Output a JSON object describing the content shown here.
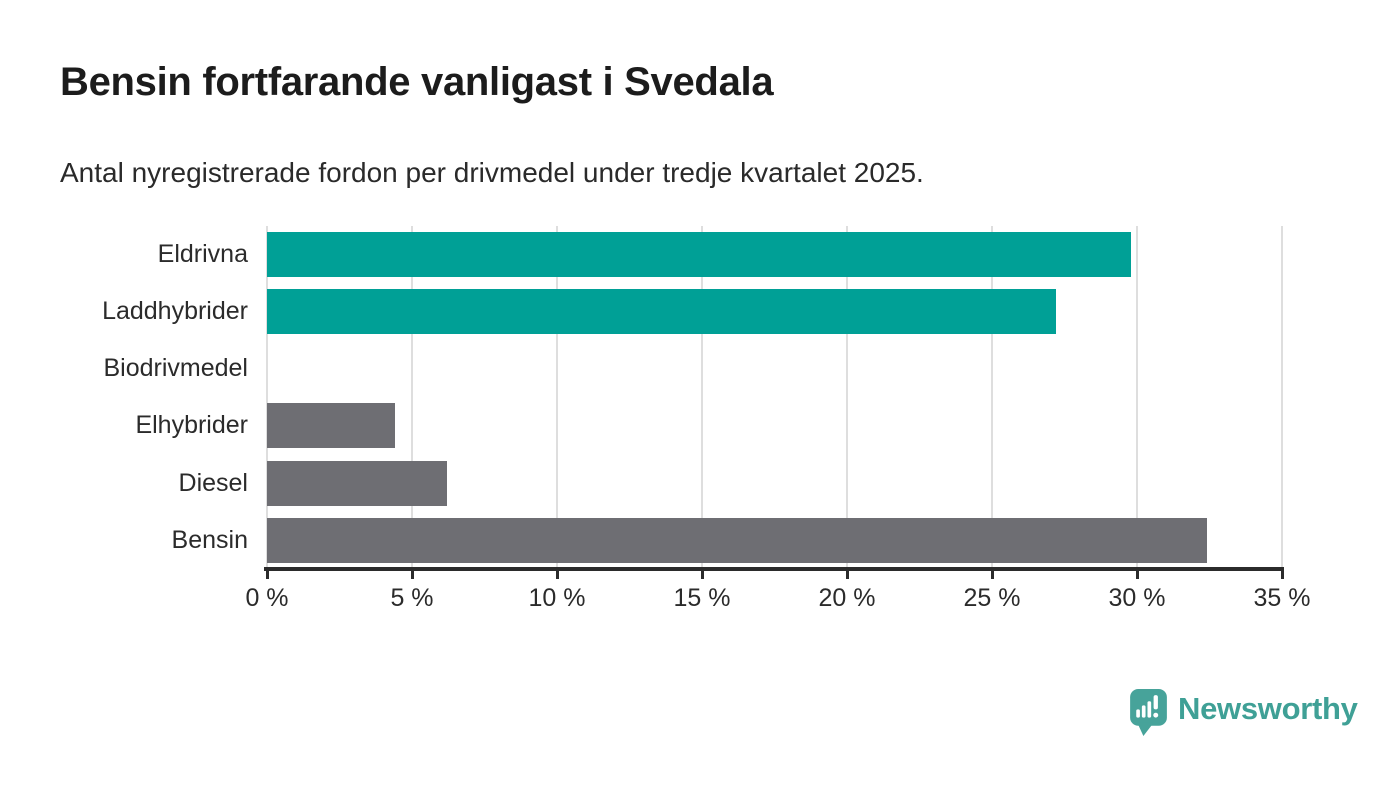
{
  "title": "Bensin fortfarande vanligast i Svedala",
  "subtitle": "Antal nyregistrerade fordon per drivmedel under tredje kvartalet 2025.",
  "chart_data": {
    "type": "bar",
    "orientation": "horizontal",
    "categories": [
      "Eldrivna",
      "Laddhybrider",
      "Biodrivmedel",
      "Elhybrider",
      "Diesel",
      "Bensin"
    ],
    "values": [
      29.8,
      27.2,
      0,
      4.4,
      6.2,
      32.4
    ],
    "unit": "%",
    "xlim": [
      0,
      35
    ],
    "x_ticks": [
      0,
      5,
      10,
      15,
      20,
      25,
      30,
      35
    ],
    "x_tick_labels": [
      "0 %",
      "5 %",
      "10 %",
      "15 %",
      "20 %",
      "25 %",
      "30 %",
      "35 %"
    ],
    "grid": true,
    "legend": "none",
    "bar_colors": [
      "#00a096",
      "#00a096",
      "#6e6e73",
      "#6e6e73",
      "#6e6e73",
      "#6e6e73"
    ],
    "accent_teal": "#00a096",
    "neutral_gray": "#6e6e73"
  },
  "footer": {
    "brand": "Newsworthy",
    "brand_color": "#3fa096",
    "logo_icon": "bar-chart-speech-bubble"
  }
}
